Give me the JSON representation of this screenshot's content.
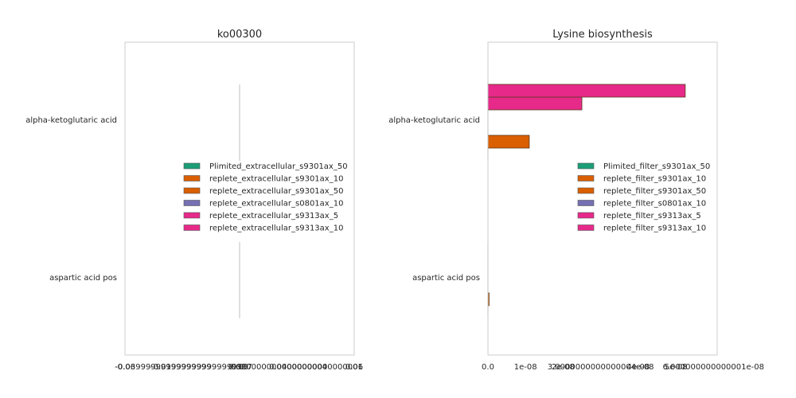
{
  "chart_data": [
    {
      "type": "bar",
      "orientation": "horizontal",
      "title": "ko00300",
      "xlabel": "",
      "ylabel": "",
      "categories": [
        "alpha-ketoglutaric acid",
        "aspartic acid pos"
      ],
      "xlim": [
        -0.06,
        0.06
      ],
      "x_ticks": [
        -0.06,
        -0.04,
        -0.02,
        0.0,
        0.02,
        0.04,
        0.06
      ],
      "x_tick_labels": [
        "-0.06",
        "-0.03999999999999999",
        "-0.019999999999999997",
        "0.00",
        "0.020000000000000004",
        "0.04000000000000001",
        "0.06"
      ],
      "grid": false,
      "legend_position": "center",
      "series": [
        {
          "name": "Plimited_extracellular_s9301ax_50",
          "color": "#1b9e77",
          "values": [
            0,
            0
          ]
        },
        {
          "name": "replete_extracellular_s9301ax_10",
          "color": "#d95f02",
          "values": [
            0,
            0
          ]
        },
        {
          "name": "replete_extracellular_s9301ax_50",
          "color": "#d95f02",
          "values": [
            0,
            0
          ]
        },
        {
          "name": "replete_extracellular_s0801ax_10",
          "color": "#7570b3",
          "values": [
            0,
            0
          ]
        },
        {
          "name": "replete_extracellular_s9313ax_5",
          "color": "#e7298a",
          "values": [
            0,
            0
          ]
        },
        {
          "name": "replete_extracellular_s9313ax_10",
          "color": "#e7298a",
          "values": [
            0,
            0
          ]
        }
      ]
    },
    {
      "type": "bar",
      "orientation": "horizontal",
      "title": "Lysine biosynthesis",
      "xlabel": "",
      "ylabel": "",
      "categories": [
        "alpha-ketoglutaric acid",
        "aspartic acid pos"
      ],
      "xlim": [
        0,
        6.1e-08
      ],
      "x_ticks": [
        0,
        1e-08,
        2e-08,
        3e-08,
        4e-08,
        5e-08,
        6e-08
      ],
      "x_tick_labels": [
        "0.0",
        "1e-08",
        "2e-08",
        "3.0000000000000004e-08",
        "4e-08",
        "5e-08",
        "6.000000000000001e-08"
      ],
      "grid": false,
      "legend_position": "center-right",
      "series": [
        {
          "name": "Plimited_filter_s9301ax_50",
          "color": "#1b9e77",
          "values": [
            0,
            0
          ]
        },
        {
          "name": "replete_filter_s9301ax_10",
          "color": "#d95f02",
          "values": [
            1.1e-08,
            3e-10
          ]
        },
        {
          "name": "replete_filter_s9301ax_50",
          "color": "#d95f02",
          "values": [
            0,
            0
          ]
        },
        {
          "name": "replete_filter_s0801ax_10",
          "color": "#7570b3",
          "values": [
            0,
            0
          ]
        },
        {
          "name": "replete_filter_s9313ax_5",
          "color": "#e7298a",
          "values": [
            2.5e-08,
            0
          ]
        },
        {
          "name": "replete_filter_s9313ax_10",
          "color": "#e7298a",
          "values": [
            5.25e-08,
            0
          ]
        }
      ]
    }
  ]
}
